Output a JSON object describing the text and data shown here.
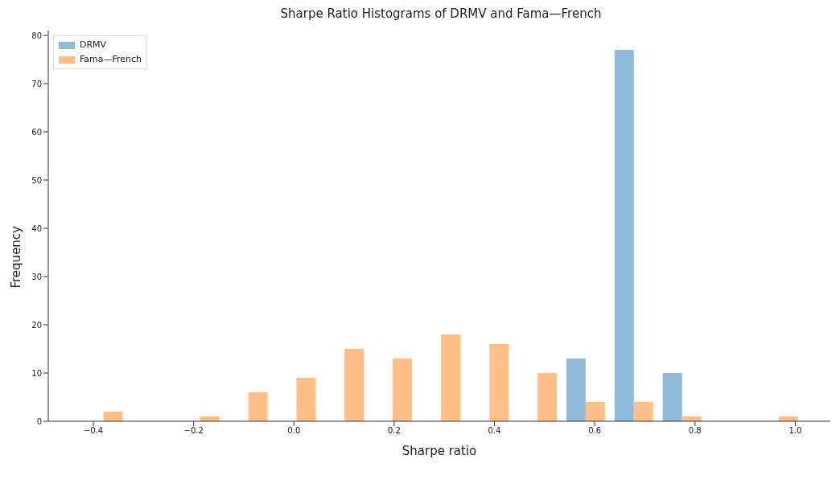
{
  "chart_data": {
    "type": "histogram",
    "title": "Sharpe Ratio Histograms of DRMV and Fama—French",
    "xlabel": "Sharpe ratio",
    "ylabel": "Frequency",
    "bins": [
      -0.428,
      -0.332,
      -0.236,
      -0.139,
      -0.043,
      0.053,
      0.149,
      0.245,
      0.342,
      0.438,
      0.534,
      0.63,
      0.726,
      0.823,
      0.919,
      1.015
    ],
    "series": [
      {
        "name": "DRMV",
        "color": "#8fbbd9",
        "values": [
          0,
          0,
          0,
          0,
          0,
          0,
          0,
          0,
          0,
          0,
          13,
          77,
          10,
          0,
          0
        ]
      },
      {
        "name": "Fama—French",
        "color": "#ffbf86",
        "values": [
          2,
          0,
          1,
          6,
          9,
          15,
          13,
          18,
          16,
          10,
          4,
          4,
          1,
          0,
          1
        ]
      }
    ],
    "xlim": [
      -0.49,
      1.07
    ],
    "ylim": [
      0,
      81
    ],
    "xticks": [
      {
        "value": -0.4,
        "label": "−0.4"
      },
      {
        "value": -0.2,
        "label": "−0.2"
      },
      {
        "value": 0,
        "label": "0.0"
      },
      {
        "value": 0.2,
        "label": "0.2"
      },
      {
        "value": 0.4,
        "label": "0.4"
      },
      {
        "value": 0.6,
        "label": "0.6"
      },
      {
        "value": 0.8,
        "label": "0.8"
      },
      {
        "value": 1,
        "label": "1.0"
      }
    ],
    "yticks": [
      0,
      10,
      20,
      30,
      40,
      50,
      60,
      70,
      80
    ],
    "grid": false,
    "legend": "top left"
  }
}
